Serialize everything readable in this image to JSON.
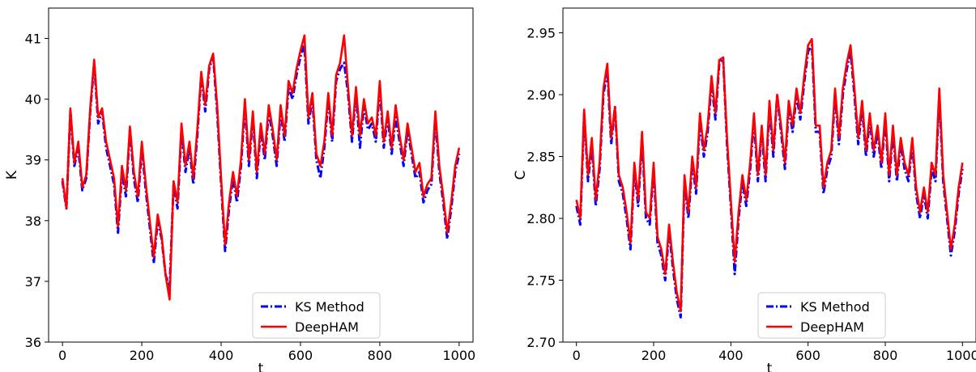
{
  "chart_data": [
    {
      "type": "line",
      "title": "",
      "xlabel": "t",
      "ylabel": "K",
      "xlim": [
        -35,
        1035
      ],
      "ylim": [
        36,
        41.5
      ],
      "xticks": [
        0,
        200,
        400,
        600,
        800,
        1000
      ],
      "yticks": [
        36,
        37,
        38,
        39,
        40,
        41
      ],
      "legend_placement": "lower-right",
      "series": [
        {
          "name": "KS Method",
          "color": "#0000ff",
          "style": "dashdot",
          "x": [
            0,
            10,
            20,
            30,
            40,
            50,
            60,
            70,
            80,
            90,
            100,
            110,
            120,
            130,
            140,
            150,
            160,
            170,
            180,
            190,
            200,
            210,
            220,
            230,
            240,
            250,
            260,
            270,
            280,
            290,
            300,
            310,
            320,
            330,
            340,
            350,
            360,
            370,
            380,
            390,
            400,
            410,
            420,
            430,
            440,
            450,
            460,
            470,
            480,
            490,
            500,
            510,
            520,
            530,
            540,
            550,
            560,
            570,
            580,
            590,
            600,
            610,
            620,
            630,
            640,
            650,
            660,
            670,
            680,
            690,
            700,
            710,
            720,
            730,
            740,
            750,
            760,
            770,
            780,
            790,
            800,
            810,
            820,
            830,
            840,
            850,
            860,
            870,
            880,
            890,
            900,
            910,
            920,
            930,
            940,
            950,
            960,
            970,
            980,
            990,
            1000
          ],
          "values": [
            38.65,
            38.2,
            39.8,
            38.9,
            39.2,
            38.5,
            38.7,
            39.8,
            40.6,
            39.6,
            39.8,
            39.2,
            38.9,
            38.6,
            37.8,
            38.8,
            38.4,
            39.5,
            38.7,
            38.3,
            39.2,
            38.5,
            37.9,
            37.3,
            38.0,
            37.7,
            37.1,
            36.9,
            38.6,
            38.2,
            39.5,
            38.8,
            39.2,
            38.6,
            39.4,
            40.4,
            39.8,
            40.5,
            40.7,
            39.8,
            38.6,
            37.5,
            38.2,
            38.7,
            38.3,
            38.9,
            39.9,
            38.9,
            39.7,
            38.7,
            39.5,
            39.0,
            39.8,
            39.4,
            38.9,
            39.8,
            39.3,
            40.2,
            40.0,
            40.4,
            40.7,
            40.9,
            39.6,
            40.0,
            39.0,
            38.7,
            39.2,
            40.0,
            39.3,
            40.3,
            40.5,
            40.6,
            40.1,
            39.3,
            40.1,
            39.2,
            39.9,
            39.5,
            39.6,
            39.3,
            40.2,
            39.2,
            39.7,
            39.1,
            39.7,
            39.3,
            38.9,
            39.5,
            39.1,
            38.7,
            38.8,
            38.3,
            38.5,
            38.6,
            39.7,
            38.8,
            38.3,
            37.7,
            38.2,
            38.8,
            39.1
          ]
        },
        {
          "name": "DeepHAM",
          "color": "#ff0000",
          "style": "solid",
          "x": [
            0,
            10,
            20,
            30,
            40,
            50,
            60,
            70,
            80,
            90,
            100,
            110,
            120,
            130,
            140,
            150,
            160,
            170,
            180,
            190,
            200,
            210,
            220,
            230,
            240,
            250,
            260,
            270,
            280,
            290,
            300,
            310,
            320,
            330,
            340,
            350,
            360,
            370,
            380,
            390,
            400,
            410,
            420,
            430,
            440,
            450,
            460,
            470,
            480,
            490,
            500,
            510,
            520,
            530,
            540,
            550,
            560,
            570,
            580,
            590,
            600,
            610,
            620,
            630,
            640,
            650,
            660,
            670,
            680,
            690,
            700,
            710,
            720,
            730,
            740,
            750,
            760,
            770,
            780,
            790,
            800,
            810,
            820,
            830,
            840,
            850,
            860,
            870,
            880,
            890,
            900,
            910,
            920,
            930,
            940,
            950,
            960,
            970,
            980,
            990,
            1000
          ],
          "values": [
            38.7,
            38.2,
            39.85,
            38.95,
            39.3,
            38.55,
            38.75,
            39.85,
            40.65,
            39.7,
            39.85,
            39.3,
            39.0,
            38.7,
            37.9,
            38.9,
            38.5,
            39.55,
            38.8,
            38.4,
            39.3,
            38.6,
            38.0,
            37.4,
            38.1,
            37.75,
            37.1,
            36.7,
            38.65,
            38.3,
            39.6,
            38.9,
            39.3,
            38.7,
            39.5,
            40.45,
            39.9,
            40.55,
            40.75,
            39.9,
            38.7,
            37.6,
            38.3,
            38.8,
            38.4,
            39.0,
            40.0,
            39.0,
            39.8,
            38.8,
            39.6,
            39.1,
            39.9,
            39.5,
            39.0,
            39.9,
            39.4,
            40.3,
            40.1,
            40.5,
            40.8,
            41.05,
            39.7,
            40.1,
            39.1,
            38.9,
            39.3,
            40.1,
            39.4,
            40.4,
            40.6,
            41.05,
            40.2,
            39.4,
            40.2,
            39.4,
            40.0,
            39.6,
            39.7,
            39.4,
            40.3,
            39.3,
            39.8,
            39.2,
            39.9,
            39.4,
            39.0,
            39.6,
            39.2,
            38.8,
            38.95,
            38.4,
            38.6,
            38.7,
            39.8,
            38.9,
            38.4,
            37.8,
            38.3,
            38.9,
            39.2
          ]
        }
      ]
    },
    {
      "type": "line",
      "title": "",
      "xlabel": "t",
      "ylabel": "C",
      "xlim": [
        -35,
        1035
      ],
      "ylim": [
        2.7,
        2.97
      ],
      "xticks": [
        0,
        200,
        400,
        600,
        800,
        1000
      ],
      "yticks": [
        2.7,
        2.75,
        2.8,
        2.85,
        2.9,
        2.95
      ],
      "ytick_labels": [
        "2.70",
        "2.75",
        "2.80",
        "2.85",
        "2.90",
        "2.95"
      ],
      "legend_placement": "lower-center",
      "series": [
        {
          "name": "KS Method",
          "color": "#0000ff",
          "style": "dashdot",
          "x": [
            0,
            10,
            20,
            30,
            40,
            50,
            60,
            70,
            80,
            90,
            100,
            110,
            120,
            130,
            140,
            150,
            160,
            170,
            180,
            190,
            200,
            210,
            220,
            230,
            240,
            250,
            260,
            270,
            280,
            290,
            300,
            310,
            320,
            330,
            340,
            350,
            360,
            370,
            380,
            390,
            400,
            410,
            420,
            430,
            440,
            450,
            460,
            470,
            480,
            490,
            500,
            510,
            520,
            530,
            540,
            550,
            560,
            570,
            580,
            590,
            600,
            610,
            620,
            630,
            640,
            650,
            660,
            670,
            680,
            690,
            700,
            710,
            720,
            730,
            740,
            750,
            760,
            770,
            780,
            790,
            800,
            810,
            820,
            830,
            840,
            850,
            860,
            870,
            880,
            890,
            900,
            910,
            920,
            930,
            940,
            950,
            960,
            970,
            980,
            990,
            1000
          ],
          "values": [
            2.81,
            2.795,
            2.885,
            2.83,
            2.86,
            2.81,
            2.84,
            2.9,
            2.92,
            2.86,
            2.89,
            2.83,
            2.82,
            2.8,
            2.775,
            2.84,
            2.81,
            2.865,
            2.8,
            2.795,
            2.84,
            2.78,
            2.77,
            2.75,
            2.79,
            2.76,
            2.735,
            2.72,
            2.83,
            2.8,
            2.845,
            2.82,
            2.88,
            2.85,
            2.87,
            2.91,
            2.88,
            2.925,
            2.93,
            2.86,
            2.81,
            2.755,
            2.8,
            2.83,
            2.81,
            2.84,
            2.88,
            2.83,
            2.87,
            2.83,
            2.89,
            2.85,
            2.9,
            2.87,
            2.84,
            2.89,
            2.87,
            2.9,
            2.88,
            2.91,
            2.935,
            2.94,
            2.87,
            2.87,
            2.82,
            2.84,
            2.85,
            2.9,
            2.86,
            2.9,
            2.92,
            2.935,
            2.9,
            2.86,
            2.89,
            2.85,
            2.88,
            2.85,
            2.87,
            2.84,
            2.88,
            2.83,
            2.87,
            2.83,
            2.86,
            2.84,
            2.83,
            2.86,
            2.82,
            2.8,
            2.82,
            2.8,
            2.84,
            2.83,
            2.9,
            2.83,
            2.8,
            2.77,
            2.79,
            2.82,
            2.84
          ]
        },
        {
          "name": "DeepHAM",
          "color": "#ff0000",
          "style": "solid",
          "x": [
            0,
            10,
            20,
            30,
            40,
            50,
            60,
            70,
            80,
            90,
            100,
            110,
            120,
            130,
            140,
            150,
            160,
            170,
            180,
            190,
            200,
            210,
            220,
            230,
            240,
            250,
            260,
            270,
            280,
            290,
            300,
            310,
            320,
            330,
            340,
            350,
            360,
            370,
            380,
            390,
            400,
            410,
            420,
            430,
            440,
            450,
            460,
            470,
            480,
            490,
            500,
            510,
            520,
            530,
            540,
            550,
            560,
            570,
            580,
            590,
            600,
            610,
            620,
            630,
            640,
            650,
            660,
            670,
            680,
            690,
            700,
            710,
            720,
            730,
            740,
            750,
            760,
            770,
            780,
            790,
            800,
            810,
            820,
            830,
            840,
            850,
            860,
            870,
            880,
            890,
            900,
            910,
            920,
            930,
            940,
            950,
            960,
            970,
            980,
            990,
            1000
          ],
          "values": [
            2.815,
            2.8,
            2.888,
            2.835,
            2.865,
            2.815,
            2.845,
            2.905,
            2.925,
            2.865,
            2.89,
            2.835,
            2.825,
            2.805,
            2.78,
            2.845,
            2.815,
            2.87,
            2.805,
            2.8,
            2.845,
            2.785,
            2.775,
            2.755,
            2.795,
            2.765,
            2.74,
            2.725,
            2.835,
            2.805,
            2.85,
            2.825,
            2.885,
            2.855,
            2.875,
            2.915,
            2.885,
            2.928,
            2.93,
            2.865,
            2.815,
            2.765,
            2.805,
            2.835,
            2.815,
            2.845,
            2.885,
            2.835,
            2.875,
            2.835,
            2.895,
            2.855,
            2.9,
            2.875,
            2.845,
            2.895,
            2.875,
            2.905,
            2.885,
            2.915,
            2.94,
            2.945,
            2.875,
            2.875,
            2.825,
            2.845,
            2.855,
            2.905,
            2.865,
            2.905,
            2.925,
            2.94,
            2.905,
            2.865,
            2.895,
            2.855,
            2.885,
            2.855,
            2.875,
            2.845,
            2.885,
            2.835,
            2.875,
            2.835,
            2.865,
            2.845,
            2.835,
            2.865,
            2.825,
            2.805,
            2.825,
            2.805,
            2.845,
            2.835,
            2.905,
            2.835,
            2.805,
            2.775,
            2.795,
            2.825,
            2.845
          ]
        }
      ]
    }
  ]
}
